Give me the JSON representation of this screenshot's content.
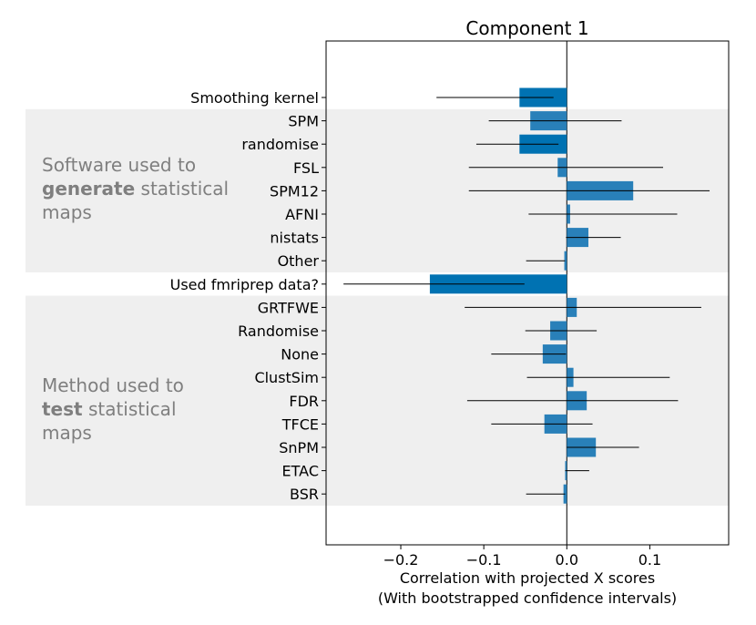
{
  "chart_data": {
    "type": "bar",
    "orientation": "horizontal",
    "title": "Component 1",
    "xlabel_line1": "Correlation with projected X scores",
    "xlabel_line2": "(With bootstrapped confidence intervals)",
    "xlim": [
      -0.29,
      0.195
    ],
    "xticks": [
      -0.2,
      -0.1,
      0.0,
      0.1
    ],
    "xtick_labels": [
      "−0.2",
      "−0.1",
      "0.0",
      "0.1"
    ],
    "grid": false,
    "colors": {
      "bar_dark": "#0072b2",
      "bar_light": "#2980b9",
      "errorbar": "#000000",
      "group_band": "#efefef",
      "group_text": "#7f7f7f"
    },
    "categories": [
      "Smoothing kernel",
      "SPM",
      "randomise",
      "FSL",
      "SPM12",
      "AFNI",
      "nistats",
      "Other",
      "Used fmriprep data?",
      "GRTFWE",
      "Randomise",
      "None",
      "ClustSim",
      "FDR",
      "TFCE",
      "SnPM",
      "ETAC",
      "BSR"
    ],
    "values": [
      -0.057,
      -0.044,
      -0.057,
      -0.011,
      0.08,
      0.004,
      0.026,
      -0.003,
      -0.165,
      0.012,
      -0.02,
      -0.029,
      0.008,
      0.024,
      -0.027,
      0.035,
      -0.002,
      -0.004
    ],
    "ci_lower": [
      -0.157,
      -0.094,
      -0.109,
      -0.118,
      -0.118,
      -0.046,
      -0.001,
      -0.049,
      -0.269,
      -0.123,
      -0.05,
      -0.091,
      -0.048,
      -0.12,
      -0.091,
      0.0,
      -0.002,
      -0.049
    ],
    "ci_upper": [
      -0.016,
      0.066,
      -0.01,
      0.116,
      0.172,
      0.133,
      0.065,
      -0.002,
      -0.051,
      0.162,
      0.036,
      -0.001,
      0.124,
      0.134,
      0.031,
      0.087,
      0.027,
      -0.002
    ],
    "groups": [
      {
        "label_lines": [
          [
            "Software used to"
          ],
          [
            "generate",
            " statistical"
          ],
          [
            "maps"
          ]
        ],
        "bold_first_word_line": 1,
        "first_index": 1,
        "last_index": 7
      },
      {
        "label_lines": [
          [
            "Method used to"
          ],
          [
            "test",
            " statistical"
          ],
          [
            "maps"
          ]
        ],
        "bold_first_word_line": 1,
        "first_index": 9,
        "last_index": 17
      }
    ]
  }
}
